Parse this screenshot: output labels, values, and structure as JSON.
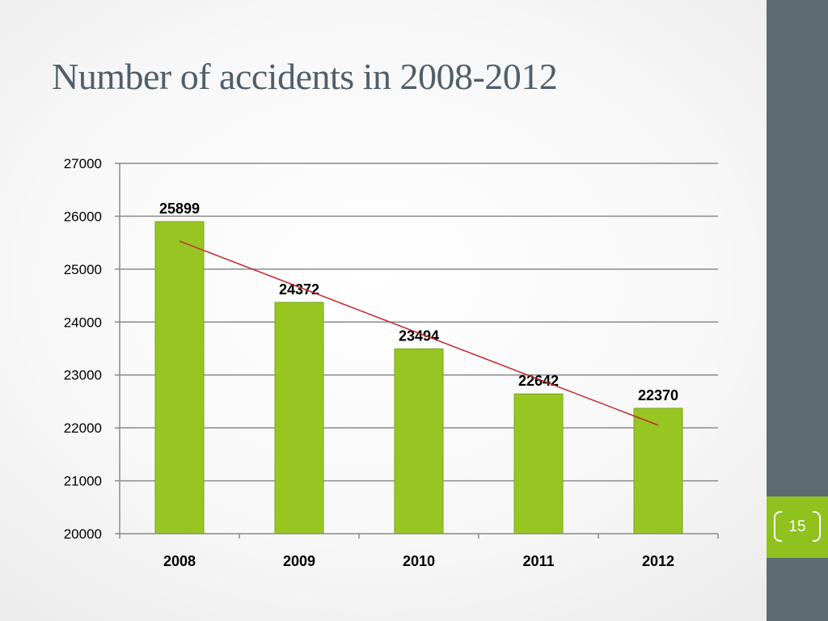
{
  "slide": {
    "title": "Number of accidents in 2008-2012",
    "page_number": "15"
  },
  "colors": {
    "bar": "#97c622",
    "bar_stroke": "#7aa516",
    "trendline": "#c0282d",
    "sidebar": "#5c6a72",
    "badge": "#8fc21e",
    "title": "#4f5f6b"
  },
  "chart_data": {
    "type": "bar",
    "categories": [
      "2008",
      "2009",
      "2010",
      "2011",
      "2012"
    ],
    "values": [
      25899,
      24372,
      23494,
      22642,
      22370
    ],
    "data_labels": [
      "25899",
      "24372",
      "23494",
      "22642",
      "22370"
    ],
    "title": "",
    "xlabel": "",
    "ylabel": "",
    "ylim": [
      20000,
      27000
    ],
    "yticks": [
      20000,
      21000,
      22000,
      23000,
      24000,
      25000,
      26000,
      27000
    ],
    "ytick_labels": [
      "20000",
      "21000",
      "22000",
      "23000",
      "24000",
      "25000",
      "26000",
      "27000"
    ],
    "grid": true,
    "legend": "none",
    "trendline": {
      "type": "linear",
      "start": 25530,
      "end": 22050
    }
  }
}
